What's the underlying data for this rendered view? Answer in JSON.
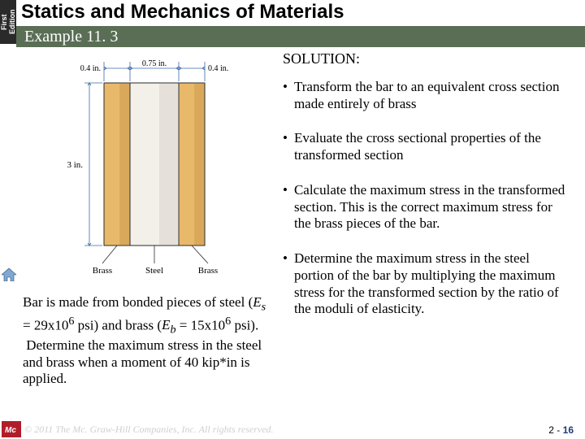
{
  "edition": {
    "line1": "First",
    "line2": "Edition"
  },
  "title": "Statics and Mechanics of Materials",
  "subtitle": "Example 11. 3",
  "diagram": {
    "dim_left": "0.4 in.",
    "dim_mid": "0.75 in.",
    "dim_right": "0.4 in.",
    "height_dim": "3 in.",
    "label_brass_l": "Brass",
    "label_steel": "Steel",
    "label_brass_r": "Brass",
    "colors": {
      "brass": "#e8b96a",
      "brass_shadow": "#c9974a",
      "steel": "#f3efe9",
      "steel_shadow": "#d7d2c9",
      "dim_line": "#3a6aa8",
      "outline": "#2a2a2a"
    }
  },
  "problem": "Bar is made from bonded pieces of steel (E_s = 29x10^6 psi) and brass (E_b = 15x10^6 psi).  Determine the maximum stress in the steel and brass when a moment of 40 kip*in is applied.",
  "solution_header": "SOLUTION:",
  "bullets": [
    "Transform the bar to an equivalent cross section made entirely of brass",
    "Evaluate the cross sectional properties of the transformed section",
    "Calculate the maximum stress in the transformed section.  This is the correct maximum stress for the brass pieces of the bar.",
    "Determine the maximum stress in the steel portion of the bar by multiplying the maximum stress for the transformed section by the ratio of the moduli of elasticity."
  ],
  "footer": {
    "copyright": "© 2011 The Mc. Graw-Hill Companies, Inc. All rights reserved.",
    "page_prefix": "2 - ",
    "page_num": "16",
    "logo_bg": "#b01d28",
    "logo_text": "Mc"
  }
}
